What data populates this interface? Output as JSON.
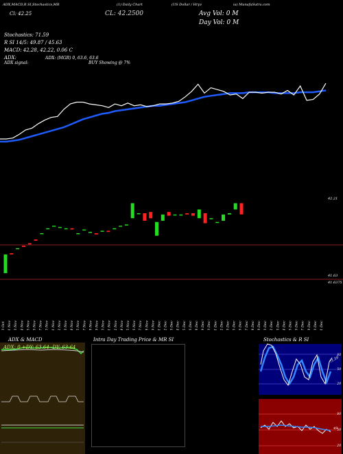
{
  "header": {
    "line1": "EC (1) Daily Chart",
    "ticker_line": "(1) Daily Chart",
    "line2": "ADX,MACD,R SI,Stochastics,MR",
    "line3": "Cl: 42.25",
    "close": "42.25",
    "title_prefix": "(US Dollar / Hryv",
    "site": "ia) MunafaSutra.com",
    "cl_big": "CL: 42.2500",
    "avg_vol": "Avg Vol: 0  M",
    "day_vol": "Day Vol: 0  M"
  },
  "indicators": {
    "stochastics": "Stochastics: 71.59",
    "rsi": "R SI 14/5: 49.87 / 45.63",
    "macd": "MACD: 42.28,  42.22,  0.06  C",
    "adx": "ADX: (MGR) 0,  63.6,  63.6",
    "adx_signal": "ADX  signal:",
    "buy_signal": "BUY Showing @ 7%"
  },
  "right_labels": {
    "upper": "42.21",
    "lower": "41.63",
    "lower2": "41.6375"
  },
  "panels": {
    "adx_title": "ADX  & MACD",
    "adx_legend": "ADX: 0    +DY: 63.64    -DY: 63.64",
    "intra_title": "Intra  Day Trading Price  & MR         SI",
    "stoch_title": "Stochastics & R          SI",
    "stoch_scale": [
      "80",
      "50",
      "20"
    ],
    "rsi_scale": [
      "80",
      "50",
      "20"
    ],
    "stoch_value": "71.59",
    "rsi_label": "49"
  },
  "colors": {
    "price": "#ffffff",
    "ma": "#1e5cff",
    "candle_up": "#22dd22",
    "candle_down": "#ff2222",
    "stoch_bg": "#00007a",
    "rsi_bg": "#8b0000",
    "adx_bg": "#2e2308"
  },
  "chart_data": {
    "type": "line",
    "dates": [
      "30 Oct",
      "01 Nov",
      "03 Nov",
      "04 Nov",
      "05 Nov",
      "06 Nov",
      "07 Nov",
      "10 Nov",
      "11 Nov",
      "12 Nov",
      "13 Nov",
      "14 Nov",
      "15 Nov",
      "17 Nov",
      "18 Nov",
      "19 Nov",
      "20 Nov",
      "21 Nov",
      "22 Nov",
      "24 Nov",
      "25 Nov",
      "26 Nov",
      "27 Nov",
      "28 Nov",
      "29 Nov",
      "01 Dec",
      "02 Dec",
      "03 Dec",
      "04 Dec",
      "05 Dec",
      "06 Dec",
      "08 Dec",
      "09 Dec",
      "10 Dec",
      "11 Dec",
      "12 Dec",
      "13 Dec",
      "15 Dec",
      "16 Dec",
      "17 Dec",
      "18 Dec",
      "19 Dec",
      "20 Dec",
      "22 Dec",
      "23 Dec",
      "24 Dec",
      "25 Dec",
      "26 Dec",
      "27 Dec",
      "29 Dec",
      "30 Dec",
      "31 Dec"
    ],
    "series": [
      {
        "values": [
          41.63,
          41.63,
          41.64,
          41.68,
          41.73,
          41.75,
          41.8,
          41.84,
          41.87,
          41.88,
          41.96,
          42.02,
          42.04,
          42.04,
          42.02,
          42.01,
          42.0,
          41.98,
          42.02,
          42.0,
          42.03,
          42.0,
          42.01,
          41.99,
          42.0,
          42.02,
          42.02,
          42.03,
          42.05,
          42.1,
          42.16,
          42.24,
          42.14,
          42.2,
          42.18,
          42.16,
          42.12,
          42.13,
          42.08,
          42.15,
          42.15,
          42.14,
          42.15,
          42.15,
          42.13,
          42.17,
          42.12,
          42.22,
          42.06,
          42.07,
          42.13,
          42.25
        ]
      },
      {
        "values": [
          41.6,
          41.6,
          41.61,
          41.62,
          41.64,
          41.66,
          41.68,
          41.7,
          41.72,
          41.74,
          41.76,
          41.79,
          41.82,
          41.85,
          41.87,
          41.89,
          41.91,
          41.92,
          41.94,
          41.95,
          41.96,
          41.97,
          41.98,
          41.99,
          42.0,
          42.0,
          42.01,
          42.02,
          42.03,
          42.04,
          42.06,
          42.08,
          42.1,
          42.11,
          42.12,
          42.13,
          42.14,
          42.14,
          42.14,
          42.15,
          42.15,
          42.15,
          42.15,
          42.14,
          42.14,
          42.14,
          42.14,
          42.15,
          42.15,
          42.15,
          42.16,
          42.17
        ]
      }
    ],
    "ylim": [
      41.3,
      42.45
    ],
    "candles": [
      {
        "o": 41.66,
        "c": 41.81,
        "up": true
      },
      {
        "o": 41.82,
        "c": 41.81,
        "up": false
      },
      {
        "o": 41.86,
        "c": 41.86,
        "up": true
      },
      {
        "o": 41.88,
        "c": 41.87,
        "up": false
      },
      {
        "o": 41.9,
        "c": 41.89,
        "up": false
      },
      {
        "o": 41.93,
        "c": 41.92,
        "up": false
      },
      {
        "o": 41.98,
        "c": 41.98,
        "up": true
      },
      {
        "o": 42.02,
        "c": 42.02,
        "up": true
      },
      {
        "o": 42.04,
        "c": 42.04,
        "up": true
      },
      {
        "o": 42.03,
        "c": 42.03,
        "up": true
      },
      {
        "o": 42.02,
        "c": 42.02,
        "up": true
      },
      {
        "o": 42.02,
        "c": 42.01,
        "up": false
      },
      {
        "o": 41.98,
        "c": 41.98,
        "up": true
      },
      {
        "o": 42.01,
        "c": 42.01,
        "up": true
      },
      {
        "o": 41.99,
        "c": 41.99,
        "up": true
      },
      {
        "o": 41.98,
        "c": 41.97,
        "up": false
      },
      {
        "o": 42.0,
        "c": 42.0,
        "up": true
      },
      {
        "o": 42.0,
        "c": 41.99,
        "up": false
      },
      {
        "o": 42.02,
        "c": 42.02,
        "up": true
      },
      {
        "o": 42.04,
        "c": 42.04,
        "up": true
      },
      {
        "o": 42.05,
        "c": 42.05,
        "up": true
      },
      {
        "o": 42.1,
        "c": 42.22,
        "up": true
      },
      {
        "o": 42.14,
        "c": 42.14,
        "up": true
      },
      {
        "o": 42.14,
        "c": 42.08,
        "up": false
      },
      {
        "o": 42.15,
        "c": 42.1,
        "up": false
      },
      {
        "o": 41.96,
        "c": 42.07,
        "up": true
      },
      {
        "o": 42.08,
        "c": 42.13,
        "up": true
      },
      {
        "o": 42.15,
        "c": 42.12,
        "up": false
      },
      {
        "o": 42.13,
        "c": 42.13,
        "up": true
      },
      {
        "o": 42.13,
        "c": 42.13,
        "up": true
      },
      {
        "o": 42.14,
        "c": 42.13,
        "up": false
      },
      {
        "o": 42.14,
        "c": 42.12,
        "up": false
      },
      {
        "o": 42.1,
        "c": 42.17,
        "up": true
      },
      {
        "o": 42.14,
        "c": 42.06,
        "up": false
      },
      {
        "o": 42.1,
        "c": 42.1,
        "up": true
      },
      {
        "o": 42.07,
        "c": 42.07,
        "up": true
      },
      {
        "o": 42.08,
        "c": 42.13,
        "up": true
      },
      {
        "o": 42.13,
        "c": 42.14,
        "up": true
      },
      {
        "o": 42.17,
        "c": 42.22,
        "up": true
      },
      {
        "o": 42.22,
        "c": 42.13,
        "up": false
      }
    ],
    "candle_ylim": [
      41.6,
      42.25
    ]
  }
}
